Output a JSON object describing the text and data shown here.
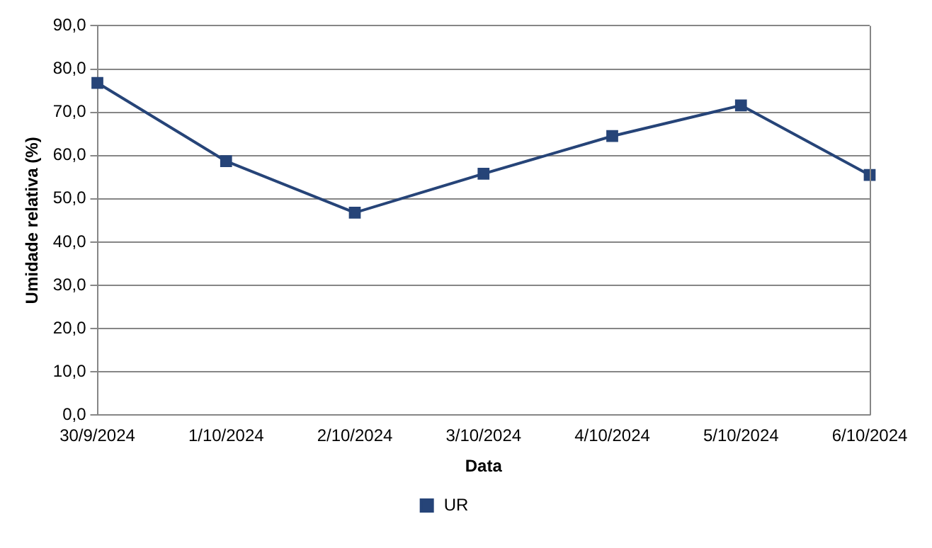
{
  "chart_data": {
    "type": "line",
    "xlabel": "Data",
    "ylabel": "Umidade relativa (%)",
    "categories": [
      "30/9/2024",
      "1/10/2024",
      "2/10/2024",
      "3/10/2024",
      "4/10/2024",
      "5/10/2024",
      "6/10/2024"
    ],
    "series": [
      {
        "name": "UR",
        "color": "#264478",
        "values": [
          76.8,
          58.7,
          46.8,
          55.8,
          64.5,
          71.6,
          55.5
        ]
      }
    ],
    "ylim": [
      0,
      90
    ],
    "yticks": [
      {
        "value": 0,
        "label": "0,0"
      },
      {
        "value": 10,
        "label": "10,0"
      },
      {
        "value": 20,
        "label": "20,0"
      },
      {
        "value": 30,
        "label": "30,0"
      },
      {
        "value": 40,
        "label": "40,0"
      },
      {
        "value": 50,
        "label": "50,0"
      },
      {
        "value": 60,
        "label": "60,0"
      },
      {
        "value": 70,
        "label": "70,0"
      },
      {
        "value": 80,
        "label": "80,0"
      },
      {
        "value": 90,
        "label": "90,0"
      }
    ],
    "grid": "y",
    "legend": "bottom",
    "marker": "square",
    "line_style": "solid"
  }
}
